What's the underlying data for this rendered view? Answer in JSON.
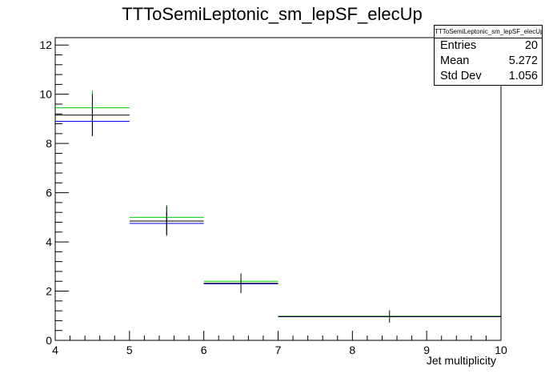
{
  "chart_data": {
    "type": "histogram",
    "title": "TTToSemiLeptonic_sm_lepSF_elecUp",
    "xlabel": "Jet multiplicity",
    "ylabel": "",
    "xlim": [
      4,
      10
    ],
    "ylim": [
      0,
      12.3
    ],
    "x_ticks": [
      "4",
      "5",
      "6",
      "7",
      "8",
      "9",
      "10"
    ],
    "y_ticks": [
      "0",
      "2",
      "4",
      "6",
      "8",
      "10",
      "12"
    ],
    "bin_edges": [
      4,
      5,
      6,
      7,
      10
    ],
    "series": [
      {
        "name": "",
        "color": "#000000",
        "values": [
          9.15,
          4.85,
          2.32,
          0.97
        ],
        "errors": [
          0.85,
          0.6,
          0.4,
          0.25
        ]
      },
      {
        "name": "",
        "color": "#0000ff",
        "values": [
          8.9,
          4.75,
          2.3,
          0.96
        ],
        "errors": [
          0.6,
          0.45,
          0.0,
          0.0
        ]
      },
      {
        "name": "",
        "color": "#00cc00",
        "values": [
          9.45,
          5.0,
          2.4,
          0.98
        ],
        "errors": [
          0.7,
          0.5,
          0.0,
          0.0
        ]
      }
    ],
    "stats_box": {
      "title": "TTToSemiLeptonic_sm_lepSF_elecUp",
      "rows": [
        {
          "label": "Entries",
          "value": "20"
        },
        {
          "label": "Mean",
          "value": "5.272"
        },
        {
          "label": "Std Dev",
          "value": "1.056"
        }
      ]
    },
    "grid": false
  }
}
